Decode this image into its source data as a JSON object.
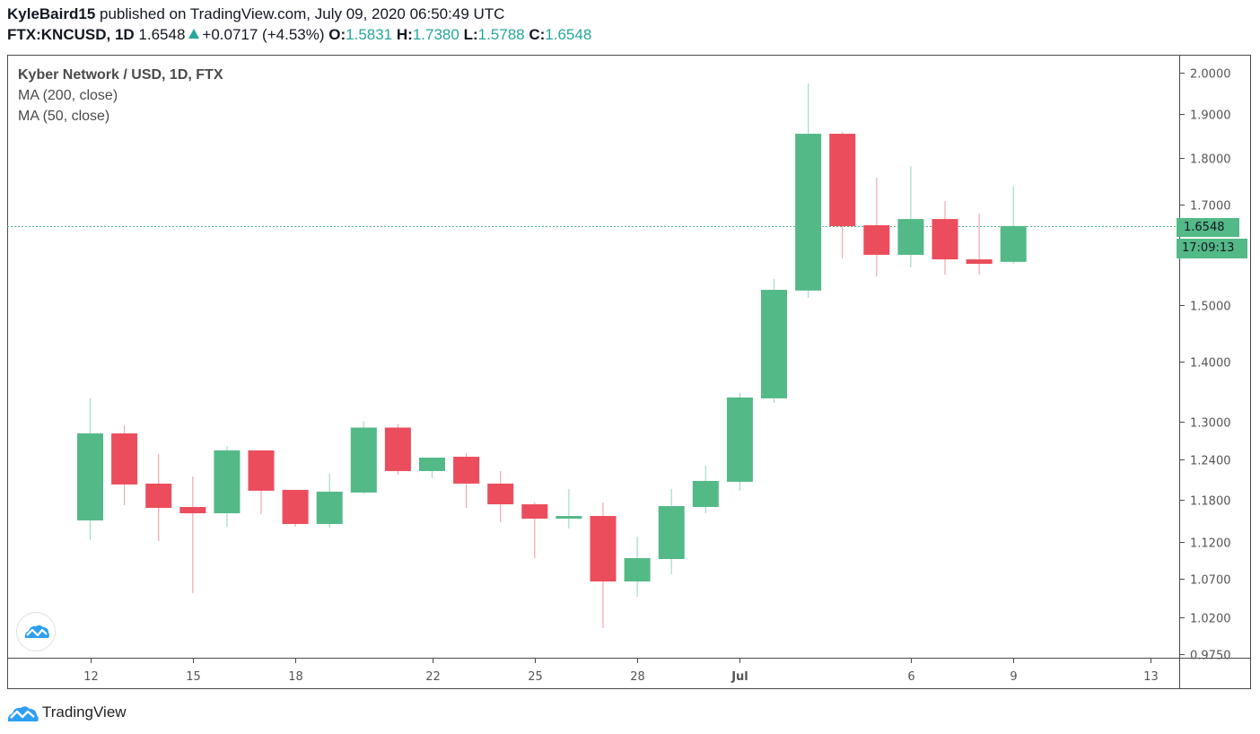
{
  "header": {
    "author": "KyleBaird15",
    "published_text": "published on TradingView.com, July 09, 2020 06:50:49 UTC",
    "symbol": "FTX:KNCUSD, 1D",
    "last_price": "1.6548",
    "change": "+0.0717 (+4.53%)",
    "open_label": "O:",
    "open": "1.5831",
    "high_label": "H:",
    "high": "1.7380",
    "low_label": "L:",
    "low": "1.5788",
    "close_label": "C:",
    "close": "1.6548",
    "up_color": "#26a69a"
  },
  "legend": {
    "title": "Kyber Network / USD, 1D, FTX",
    "indicators": [
      "MA (200, close)",
      "MA (50, close)"
    ]
  },
  "price_axis": {
    "current_price_label": "1.6548",
    "countdown_label": "17:09:13"
  },
  "footer": {
    "brand": "TradingView"
  },
  "colors": {
    "up": "#53b987",
    "down": "#eb4d5c",
    "up_wick": "#a3dcc4",
    "down_wick": "#f3a7ae",
    "price_line": "#53b987"
  },
  "chart_data": {
    "type": "candlestick",
    "title": "Kyber Network / USD, 1D, FTX",
    "xlabel": "",
    "ylabel": "",
    "yscale": "log",
    "ylim": [
      0.975,
      2.0
    ],
    "y_ticks": [
      2.0,
      1.9,
      1.8,
      1.7,
      1.5,
      1.4,
      1.3,
      1.24,
      1.18,
      1.12,
      1.07,
      1.02,
      0.975
    ],
    "y_tick_labels": [
      "2.0000",
      "1.9000",
      "1.8000",
      "1.7000",
      "1.5000",
      "1.4000",
      "1.3000",
      "1.2400",
      "1.1800",
      "1.1200",
      "1.0700",
      "1.0200",
      "0.9750"
    ],
    "x_tick_labels": [
      "12",
      "15",
      "18",
      "22",
      "25",
      "28",
      "Jul",
      "6",
      "9",
      "13"
    ],
    "grid": false,
    "current_price": 1.6548,
    "candles": [
      {
        "date": "Jun 12",
        "open": 1.1502,
        "high": 1.3374,
        "low": 1.1224,
        "close": 1.2807
      },
      {
        "date": "Jun 13",
        "open": 1.2807,
        "high": 1.2936,
        "low": 1.172,
        "close": 1.2024
      },
      {
        "date": "Jun 14",
        "open": 1.2037,
        "high": 1.2485,
        "low": 1.1212,
        "close": 1.1681
      },
      {
        "date": "Jun 15",
        "open": 1.1694,
        "high": 1.2143,
        "low": 1.0514,
        "close": 1.1604
      },
      {
        "date": "Jun 16",
        "open": 1.1604,
        "high": 1.261,
        "low": 1.1413,
        "close": 1.2541
      },
      {
        "date": "Jun 17",
        "open": 1.2541,
        "high": 1.2541,
        "low": 1.1591,
        "close": 1.1931
      },
      {
        "date": "Jun 18",
        "open": 1.1944,
        "high": 1.1944,
        "low": 1.1413,
        "close": 1.1451
      },
      {
        "date": "Jun 19",
        "open": 1.1451,
        "high": 1.2184,
        "low": 1.14,
        "close": 1.1918
      },
      {
        "date": "Jun 20",
        "open": 1.1905,
        "high": 1.3,
        "low": 1.189,
        "close": 1.29
      },
      {
        "date": "Jun 21",
        "open": 1.29,
        "high": 1.296,
        "low": 1.217,
        "close": 1.2225
      },
      {
        "date": "Jun 22",
        "open": 1.2225,
        "high": 1.236,
        "low": 1.212,
        "close": 1.243
      },
      {
        "date": "Jun 23",
        "open": 1.2443,
        "high": 1.25,
        "low": 1.1681,
        "close": 1.2037
      },
      {
        "date": "Jun 24",
        "open": 1.2037,
        "high": 1.2225,
        "low": 1.1476,
        "close": 1.1733
      },
      {
        "date": "Jun 25",
        "open": 1.1733,
        "high": 1.176,
        "low": 1.0978,
        "close": 1.1527
      },
      {
        "date": "Jun 26",
        "open": 1.1527,
        "high": 1.1957,
        "low": 1.1388,
        "close": 1.1565
      },
      {
        "date": "Jun 27",
        "open": 1.1565,
        "high": 1.176,
        "low": 1.0069,
        "close": 1.0666
      },
      {
        "date": "Jun 28",
        "open": 1.0666,
        "high": 1.1274,
        "low": 1.0468,
        "close": 1.0978
      },
      {
        "date": "Jun 29",
        "open": 1.0966,
        "high": 1.1957,
        "low": 1.0762,
        "close": 1.1707
      },
      {
        "date": "Jun 30",
        "open": 1.1694,
        "high": 1.2306,
        "low": 1.1604,
        "close": 1.2077
      },
      {
        "date": "Jul 1",
        "open": 1.2064,
        "high": 1.3462,
        "low": 1.1931,
        "close": 1.3388
      },
      {
        "date": "Jul 2",
        "open": 1.3374,
        "high": 1.5497,
        "low": 1.33,
        "close": 1.5293
      },
      {
        "date": "Jul 3",
        "open": 1.528,
        "high": 1.9735,
        "low": 1.5141,
        "close": 1.8546
      },
      {
        "date": "Jul 4",
        "open": 1.8546,
        "high": 1.8587,
        "low": 1.5898,
        "close": 1.6545
      },
      {
        "date": "Jul 5",
        "open": 1.6564,
        "high": 1.7566,
        "low": 1.5549,
        "close": 1.5969
      },
      {
        "date": "Jul 6",
        "open": 1.5969,
        "high": 1.7821,
        "low": 1.5722,
        "close": 1.6692
      },
      {
        "date": "Jul 7",
        "open": 1.6692,
        "high": 1.7067,
        "low": 1.5584,
        "close": 1.588
      },
      {
        "date": "Jul 8",
        "open": 1.588,
        "high": 1.6804,
        "low": 1.5584,
        "close": 1.5793
      },
      {
        "date": "Jul 9",
        "open": 1.5831,
        "high": 1.738,
        "low": 1.5788,
        "close": 1.6548
      }
    ]
  }
}
